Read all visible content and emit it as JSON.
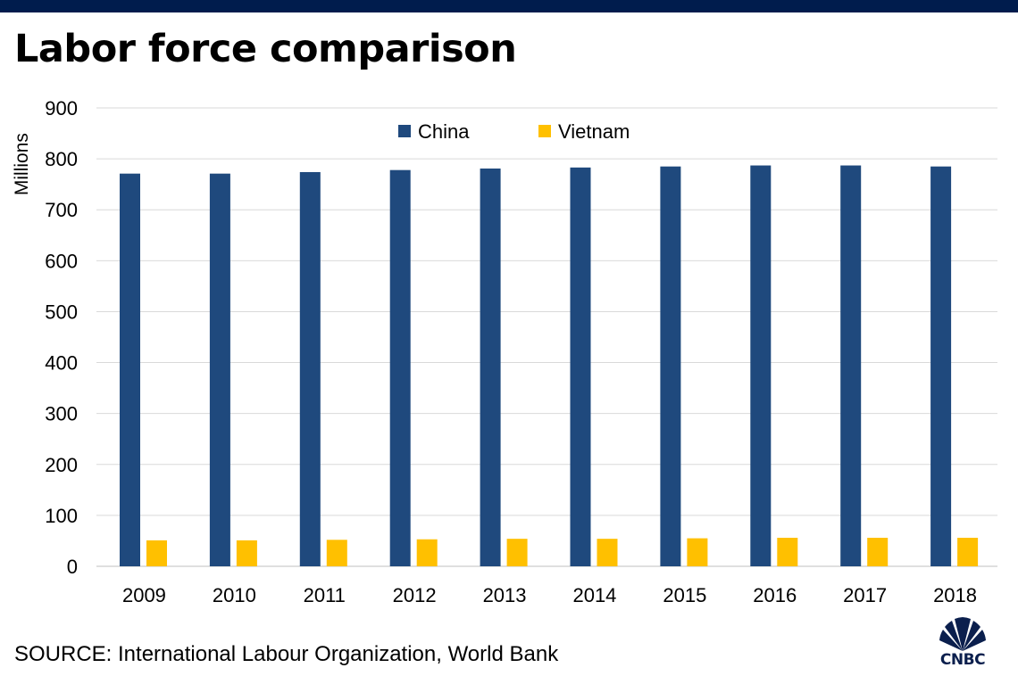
{
  "header": {
    "title": "Labor force comparison"
  },
  "footer": {
    "source": "SOURCE: International Labour Organization, World Bank"
  },
  "logo": {
    "text": "CNBC"
  },
  "chart_data": {
    "type": "bar",
    "title": "Labor force comparison",
    "xlabel": "",
    "ylabel": "Millions",
    "ylim": [
      0,
      900
    ],
    "yticks": [
      0,
      100,
      200,
      300,
      400,
      500,
      600,
      700,
      800,
      900
    ],
    "grid": true,
    "legend_position": "top-center",
    "categories": [
      "2009",
      "2010",
      "2011",
      "2012",
      "2013",
      "2014",
      "2015",
      "2016",
      "2017",
      "2018"
    ],
    "series": [
      {
        "name": "China",
        "color": "#1f497d",
        "values": [
          771,
          771,
          774,
          778,
          781,
          783,
          785,
          787,
          787,
          785
        ]
      },
      {
        "name": "Vietnam",
        "color": "#ffc000",
        "values": [
          51,
          51,
          52,
          53,
          54,
          54,
          55,
          56,
          56,
          56
        ]
      }
    ]
  }
}
